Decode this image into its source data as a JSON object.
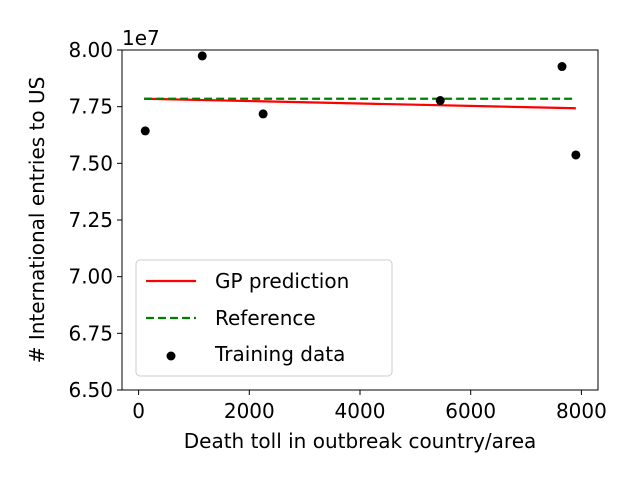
{
  "chart_data": {
    "type": "scatter",
    "xlabel": "Death toll in outbreak country/area",
    "ylabel": "# International entries to US",
    "y_offset_label": "1e7",
    "xlim": [
      -300,
      8300
    ],
    "ylim": [
      6.5,
      8.0
    ],
    "x_ticks": [
      0,
      2000,
      4000,
      6000,
      8000
    ],
    "x_tick_labels": [
      "0",
      "2000",
      "4000",
      "6000",
      "8000"
    ],
    "y_ticks": [
      6.5,
      6.75,
      7.0,
      7.25,
      7.5,
      7.75,
      8.0
    ],
    "y_tick_labels": [
      "6.50",
      "6.75",
      "7.00",
      "7.25",
      "7.50",
      "7.75",
      "8.00"
    ],
    "grid": false,
    "legend_position": "lower-left",
    "series": [
      {
        "name": "GP prediction",
        "kind": "line",
        "color": "#ff0000",
        "style": "solid",
        "x": [
          100,
          7900
        ],
        "y": [
          7.785,
          7.743
        ]
      },
      {
        "name": "Reference",
        "kind": "line",
        "color": "#008000",
        "style": "dashed",
        "x": [
          100,
          7900
        ],
        "y": [
          7.785,
          7.785
        ]
      },
      {
        "name": "Training data",
        "kind": "scatter",
        "color": "#000000",
        "x": [
          120,
          1150,
          2250,
          5450,
          7650,
          7900
        ],
        "y": [
          7.643,
          7.974,
          7.718,
          7.777,
          7.927,
          7.537
        ]
      }
    ]
  }
}
